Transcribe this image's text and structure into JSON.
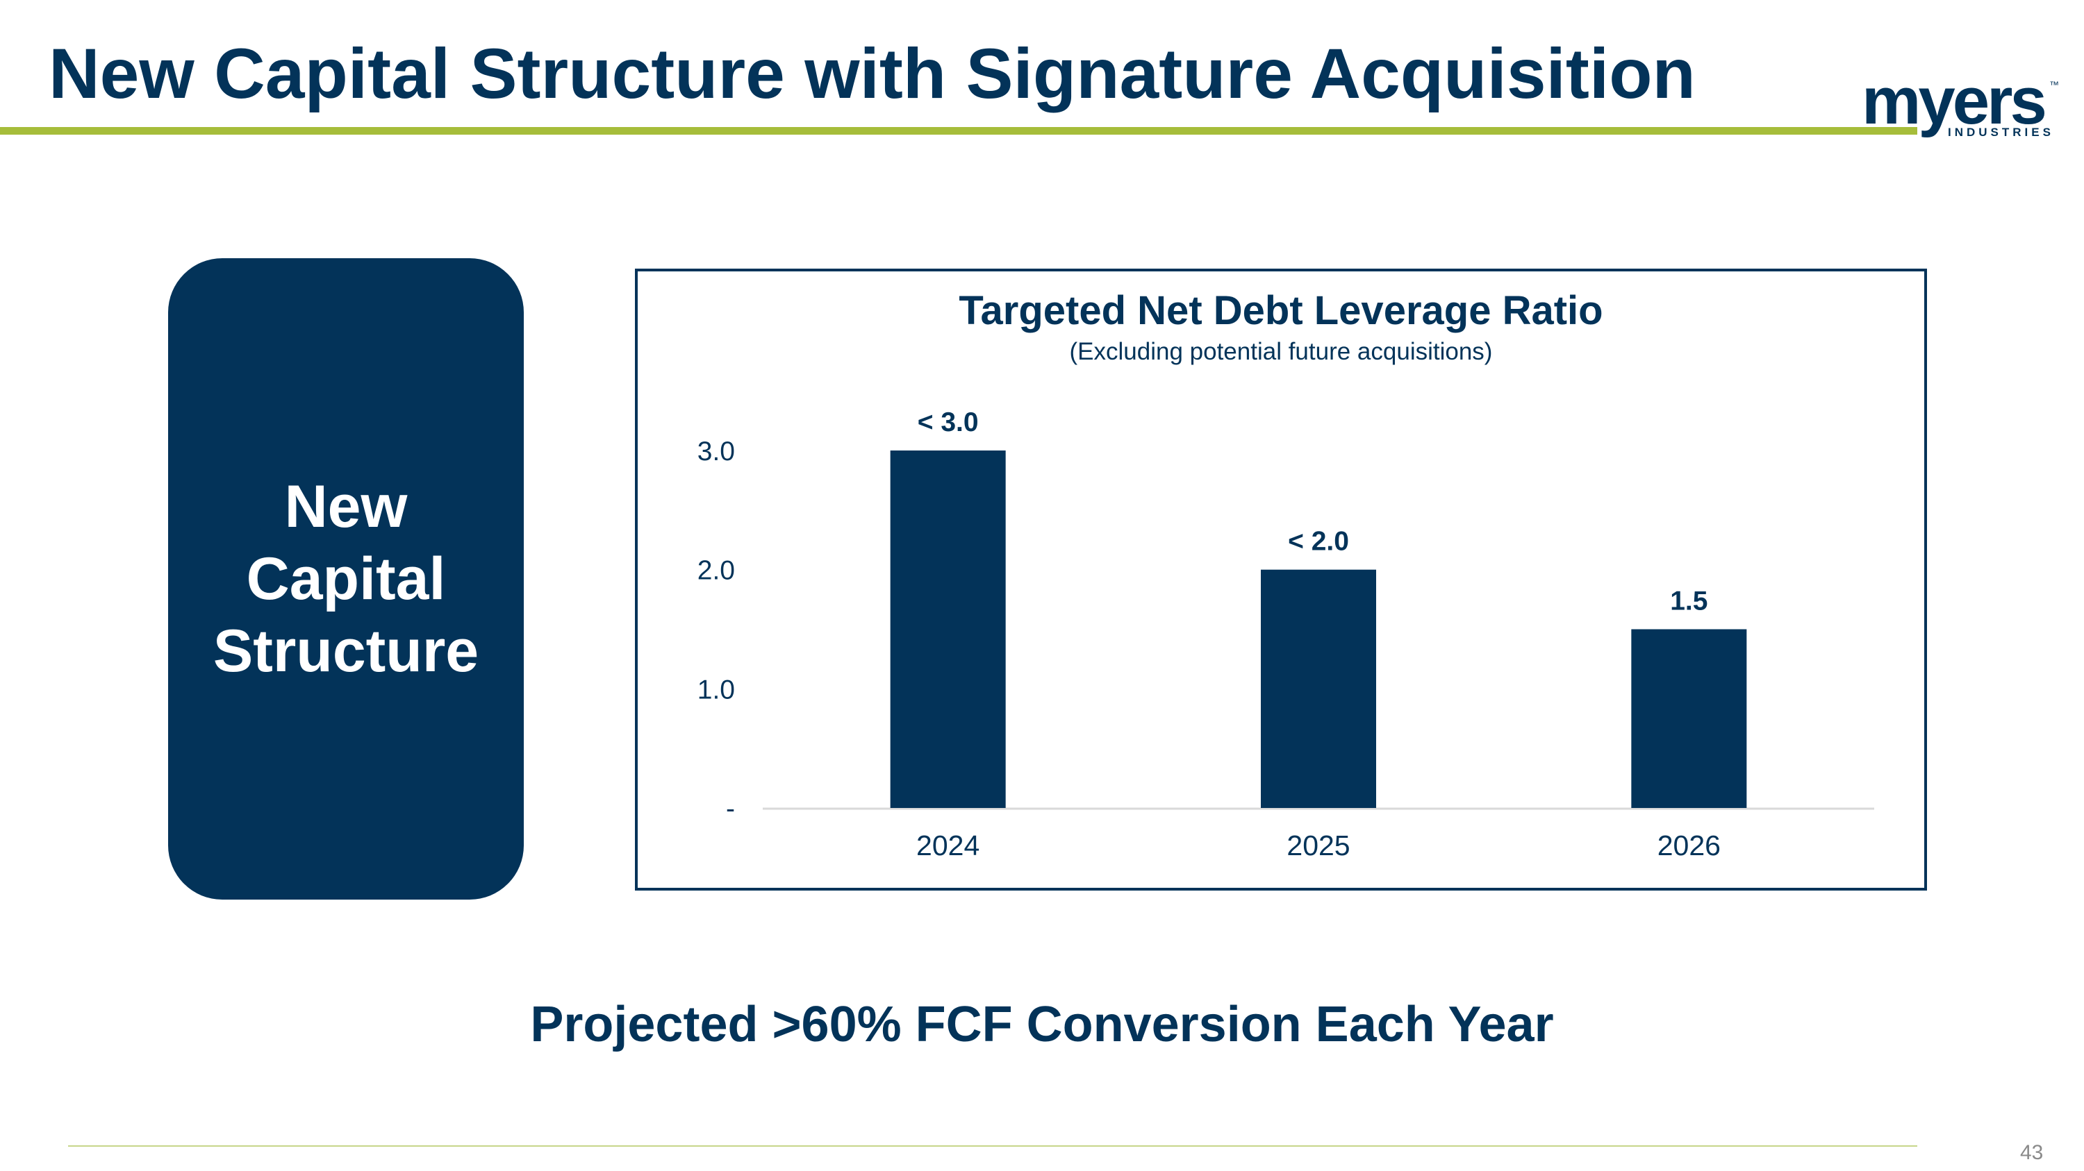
{
  "slide": {
    "title": "New Capital Structure with Signature Acquisition",
    "side_box_text": "New Capital Structure",
    "callout": "Projected >60% FCF Conversion Each Year",
    "page_number": "43"
  },
  "logo": {
    "word": "myers",
    "tm": "™",
    "sub": "INDUSTRIES"
  },
  "colors": {
    "navy": "#033359",
    "accent_green": "#a6bd3a",
    "baseline": "#d9d9d9"
  },
  "chart_data": {
    "type": "bar",
    "title": "Targeted Net Debt Leverage Ratio",
    "subtitle": "(Excluding potential future acquisitions)",
    "categories": [
      "2024",
      "2025",
      "2026"
    ],
    "values": [
      3.0,
      2.0,
      1.5
    ],
    "data_labels": [
      "< 3.0",
      "< 2.0",
      "1.5"
    ],
    "ylim": [
      0,
      3.0
    ],
    "yticks": [
      {
        "value": 0,
        "label": "-"
      },
      {
        "value": 1,
        "label": "1.0"
      },
      {
        "value": 2,
        "label": "2.0"
      },
      {
        "value": 3,
        "label": "3.0"
      }
    ],
    "grid": false,
    "legend": "none"
  }
}
